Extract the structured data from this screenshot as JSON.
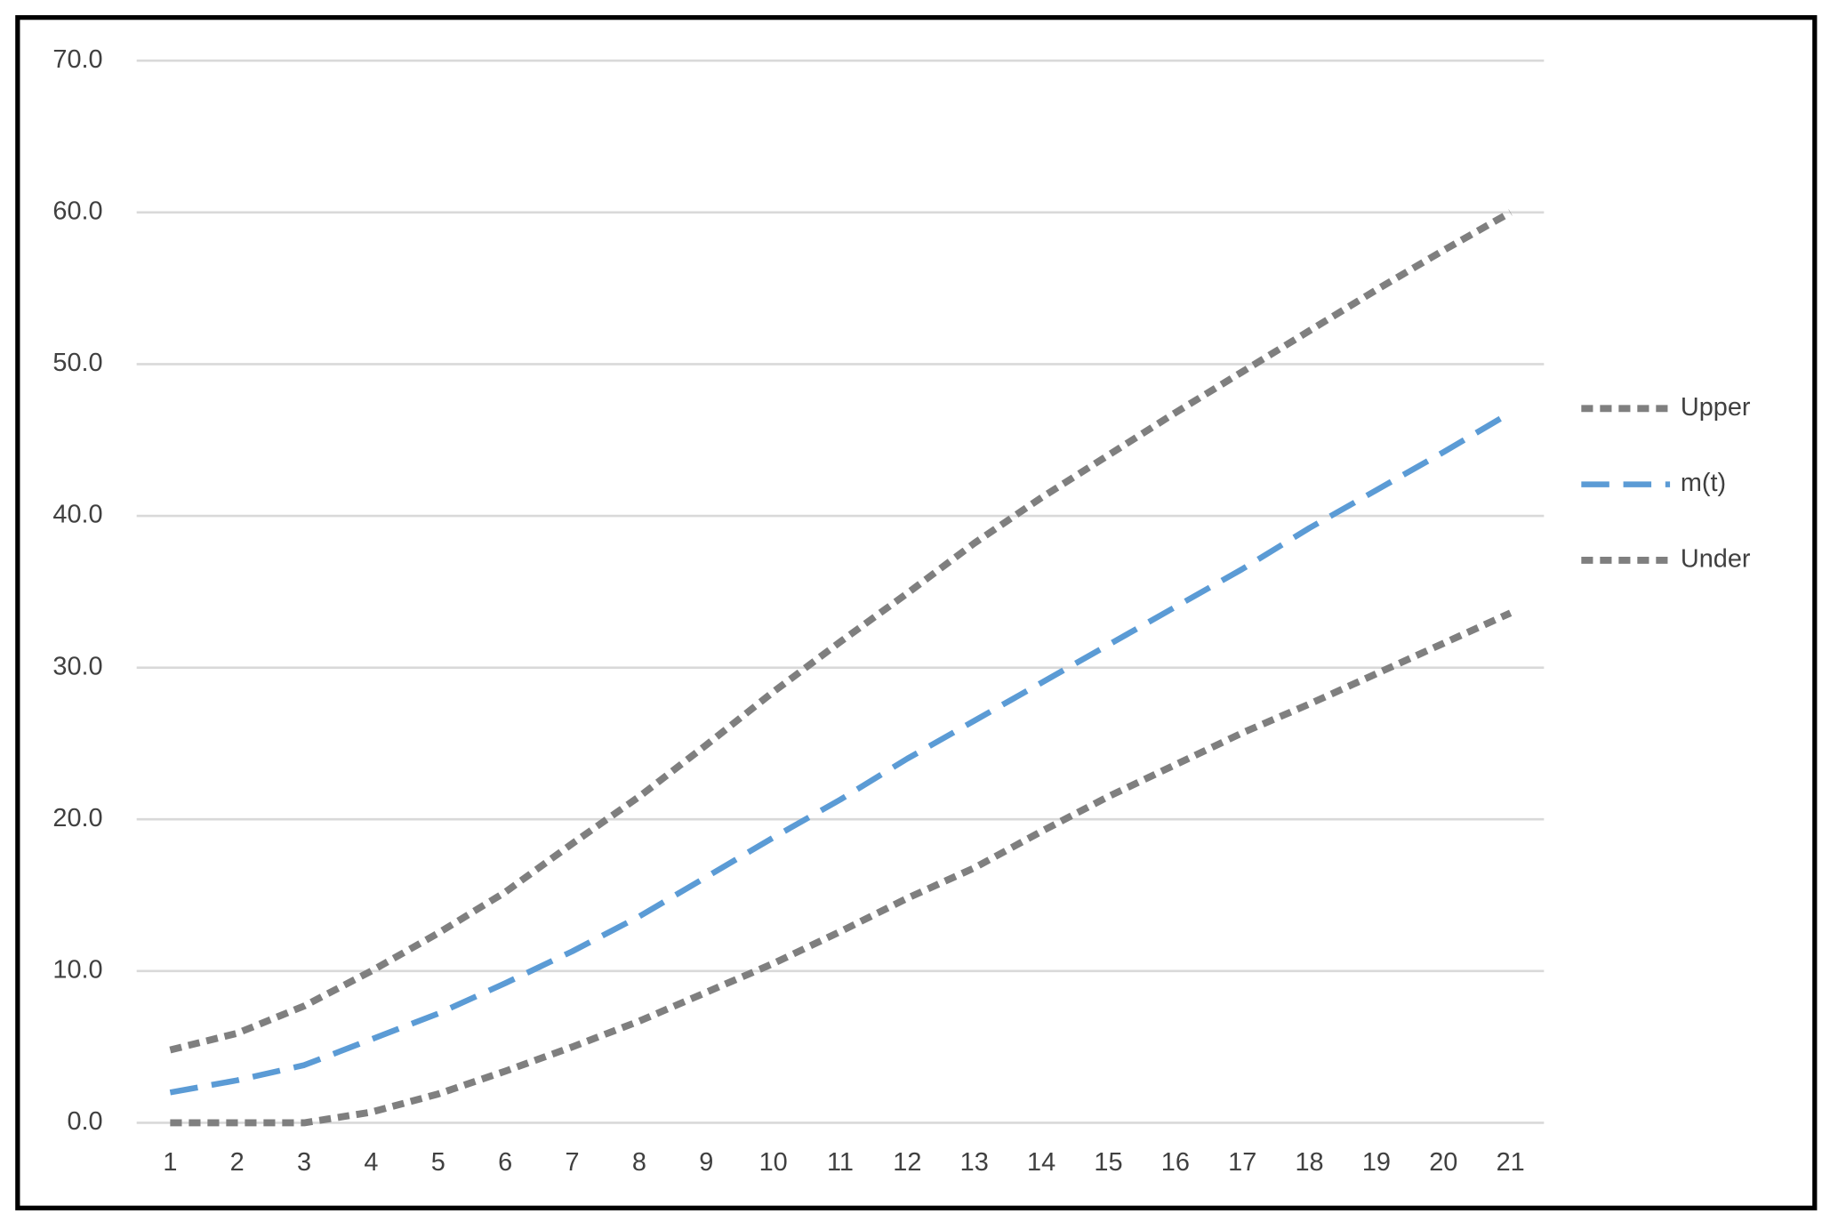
{
  "chart_data": {
    "type": "line",
    "categories": [
      "1",
      "2",
      "3",
      "4",
      "5",
      "6",
      "7",
      "8",
      "9",
      "10",
      "11",
      "12",
      "13",
      "14",
      "15",
      "16",
      "17",
      "18",
      "19",
      "20",
      "21"
    ],
    "series": [
      {
        "name": "Upper",
        "color": "#7f7f7f",
        "values": [
          4.8,
          5.9,
          7.7,
          10.0,
          12.5,
          15.2,
          18.4,
          21.5,
          24.9,
          28.4,
          31.7,
          34.9,
          38.2,
          41.2,
          44.0,
          46.8,
          49.5,
          52.2,
          54.9,
          57.5,
          60.0
        ]
      },
      {
        "name": "m(t)",
        "color": "#5b9bd5",
        "values": [
          2.0,
          2.8,
          3.8,
          5.5,
          7.2,
          9.2,
          11.3,
          13.6,
          16.2,
          18.8,
          21.3,
          24.0,
          26.5,
          29.0,
          31.5,
          34.0,
          36.5,
          39.2,
          41.7,
          44.2,
          46.8
        ]
      },
      {
        "name": "Under",
        "color": "#7f7f7f",
        "values": [
          0.0,
          0.0,
          0.0,
          0.7,
          1.9,
          3.4,
          5.0,
          6.7,
          8.6,
          10.5,
          12.6,
          14.8,
          16.8,
          19.2,
          21.5,
          23.6,
          25.7,
          27.6,
          29.6,
          31.6,
          33.6
        ]
      }
    ],
    "ylim": [
      0,
      70
    ],
    "yticks": [
      {
        "value": 0,
        "label": "0.0"
      },
      {
        "value": 10,
        "label": "10.0"
      },
      {
        "value": 20,
        "label": "20.0"
      },
      {
        "value": 30,
        "label": "30.0"
      },
      {
        "value": 40,
        "label": "40.0"
      },
      {
        "value": 50,
        "label": "50.0"
      },
      {
        "value": 60,
        "label": "60.0"
      },
      {
        "value": 70,
        "label": "70.0"
      }
    ],
    "grid": true,
    "legend": "right"
  }
}
